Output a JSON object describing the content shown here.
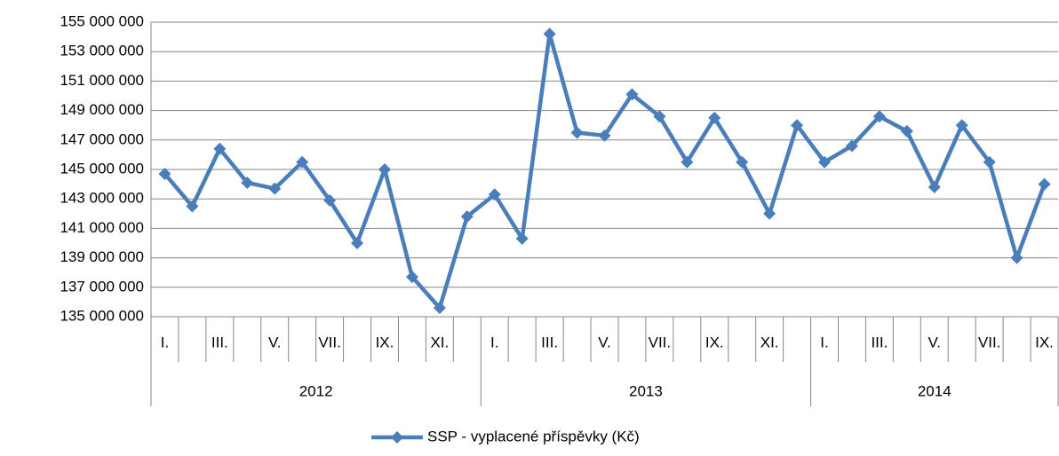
{
  "chart_data": {
    "type": "line",
    "groups": [
      {
        "name": "2012",
        "categories": [
          "I.",
          null,
          "III.",
          null,
          "V.",
          null,
          "VII.",
          null,
          "IX.",
          null,
          "XI.",
          null
        ]
      },
      {
        "name": "2013",
        "categories": [
          "I.",
          null,
          "III.",
          null,
          "V.",
          null,
          "VII.",
          null,
          "IX.",
          null,
          "XI.",
          null
        ]
      },
      {
        "name": "2014",
        "categories": [
          "I.",
          null,
          "III.",
          null,
          "V.",
          null,
          "VII.",
          null,
          "IX."
        ]
      }
    ],
    "series": [
      {
        "name": "SSP - vyplacené příspěvky (Kč)",
        "color": "#4a7ebb",
        "values": [
          144700000,
          142500000,
          146400000,
          144100000,
          143700000,
          145500000,
          142900000,
          140000000,
          145000000,
          137700000,
          135600000,
          141800000,
          143300000,
          140300000,
          154200000,
          147500000,
          147300000,
          150100000,
          148600000,
          145500000,
          148500000,
          145500000,
          142000000,
          148000000,
          145500000,
          146600000,
          148600000,
          147600000,
          143800000,
          148000000,
          145500000,
          139000000,
          144000000
        ]
      }
    ],
    "ylim": [
      135000000,
      155000000
    ],
    "yticks": [
      {
        "value": 135000000,
        "label": "135 000 000"
      },
      {
        "value": 137000000,
        "label": "137 000 000"
      },
      {
        "value": 139000000,
        "label": "139 000 000"
      },
      {
        "value": 141000000,
        "label": "141 000 000"
      },
      {
        "value": 143000000,
        "label": "143 000 000"
      },
      {
        "value": 145000000,
        "label": "145 000 000"
      },
      {
        "value": 147000000,
        "label": "147 000 000"
      },
      {
        "value": 149000000,
        "label": "149 000 000"
      },
      {
        "value": 151000000,
        "label": "151 000 000"
      },
      {
        "value": 153000000,
        "label": "153 000 000"
      },
      {
        "value": 155000000,
        "label": "155 000 000"
      }
    ],
    "grid": true,
    "legend": "bottom"
  }
}
